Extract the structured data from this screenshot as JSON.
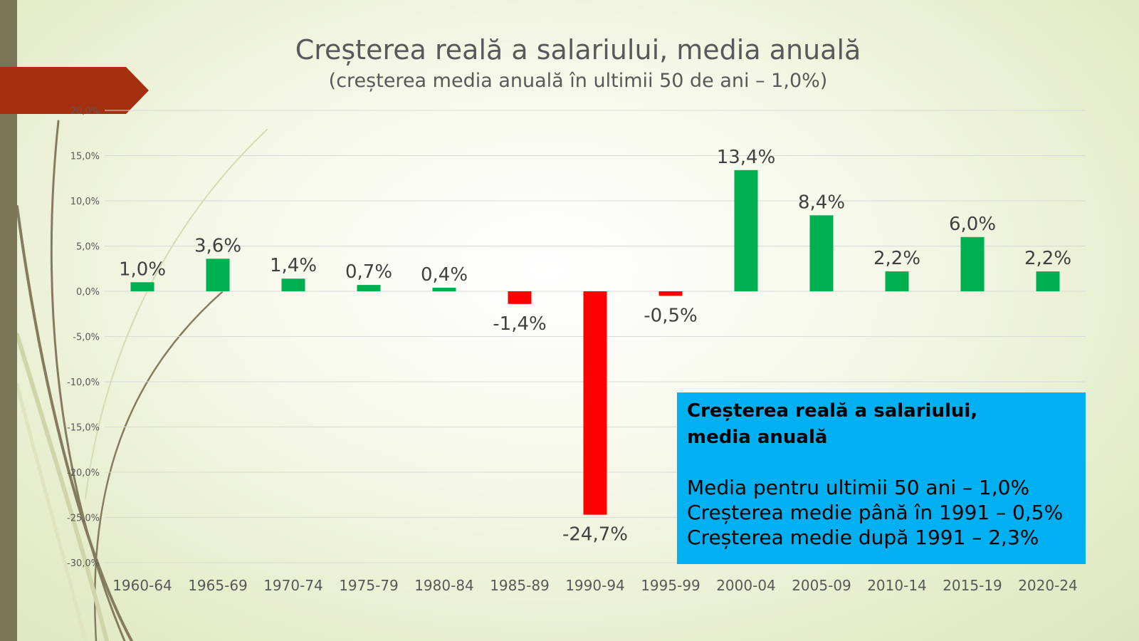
{
  "slide": {
    "title": "Creșterea reală a salariului, media anuală",
    "subtitle": "(creșterea media anuală în ultimii 50 de ani – 1,0%)",
    "info_box": {
      "heading_line1": "Creșterea reală a salariului,",
      "heading_line2": "media anuală",
      "line1": "Media pentru ultimii 50 ani – 1,0%",
      "line2": "Creșterea medie până în 1991 – 0,5%",
      "line3": "Creșterea medie după 1991 – 2,3%"
    }
  },
  "colors": {
    "positive": "#00b050",
    "negative": "#ff0000",
    "info_box": "#00b0f0",
    "accent_arrow": "#a5300f",
    "left_bar": "#7b7558"
  },
  "chart_data": {
    "type": "bar",
    "categories": [
      "1960-64",
      "1965-69",
      "1970-74",
      "1975-79",
      "1980-84",
      "1985-89",
      "1990-94",
      "1995-99",
      "2000-04",
      "2005-09",
      "2010-14",
      "2015-19",
      "2020-24"
    ],
    "values": [
      1.0,
      3.6,
      1.4,
      0.7,
      0.4,
      -1.4,
      -24.7,
      -0.5,
      13.4,
      8.4,
      2.2,
      6.0,
      2.2
    ],
    "data_labels": [
      "1,0%",
      "3,6%",
      "1,4%",
      "0,7%",
      "0,4%",
      "-1,4%",
      "-24,7%",
      "-0,5%",
      "13,4%",
      "8,4%",
      "2,2%",
      "6,0%",
      "2,2%"
    ],
    "y_ticks": [
      20,
      15,
      10,
      5,
      0,
      -5,
      -10,
      -15,
      -20,
      -25,
      -30
    ],
    "y_tick_labels": [
      "20,0%",
      "15,0%",
      "10,0%",
      "5,0%",
      "0,0%",
      "-5,0%",
      "-10,0%",
      "-15,0%",
      "-20,0%",
      "-25,0%",
      "-30,0%"
    ],
    "ylim": [
      -30,
      20
    ],
    "grid": true,
    "title": "Creșterea reală a salariului, media anuală",
    "subtitle": "(creșterea media anuală în ultimii 50 de ani – 1,0%)",
    "xlabel": "",
    "ylabel": ""
  }
}
